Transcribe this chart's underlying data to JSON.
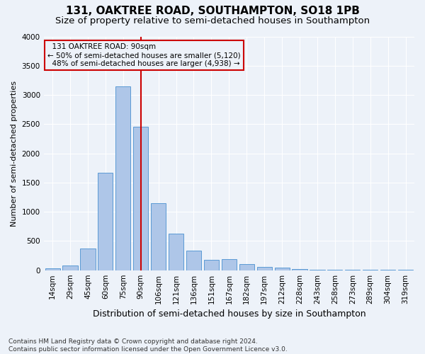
{
  "title": "131, OAKTREE ROAD, SOUTHAMPTON, SO18 1PB",
  "subtitle": "Size of property relative to semi-detached houses in Southampton",
  "xlabel": "Distribution of semi-detached houses by size in Southampton",
  "ylabel": "Number of semi-detached properties",
  "footer_line1": "Contains HM Land Registry data © Crown copyright and database right 2024.",
  "footer_line2": "Contains public sector information licensed under the Open Government Licence v3.0.",
  "bar_labels": [
    "14sqm",
    "29sqm",
    "45sqm",
    "60sqm",
    "75sqm",
    "90sqm",
    "106sqm",
    "121sqm",
    "136sqm",
    "151sqm",
    "167sqm",
    "182sqm",
    "197sqm",
    "212sqm",
    "228sqm",
    "243sqm",
    "258sqm",
    "273sqm",
    "289sqm",
    "304sqm",
    "319sqm"
  ],
  "bar_values": [
    30,
    80,
    370,
    1670,
    3150,
    2450,
    1150,
    630,
    340,
    175,
    185,
    110,
    60,
    40,
    25,
    10,
    5,
    3,
    3,
    3,
    3
  ],
  "bar_color": "#aec6e8",
  "bar_edge_color": "#5b9bd5",
  "property_label": "131 OAKTREE ROAD: 90sqm",
  "pct_smaller": 50,
  "count_smaller": 5120,
  "pct_larger": 48,
  "count_larger": 4938,
  "marker_bar_index": 5,
  "ylim": [
    0,
    4000
  ],
  "yticks": [
    0,
    500,
    1000,
    1500,
    2000,
    2500,
    3000,
    3500,
    4000
  ],
  "annotation_box_color": "#cc0000",
  "vline_color": "#cc0000",
  "bg_color": "#edf2f9",
  "grid_color": "#ffffff",
  "title_fontsize": 11,
  "subtitle_fontsize": 9.5,
  "ylabel_fontsize": 8,
  "xlabel_fontsize": 9,
  "tick_fontsize": 7.5,
  "footer_fontsize": 6.5,
  "ann_fontsize": 7.5
}
